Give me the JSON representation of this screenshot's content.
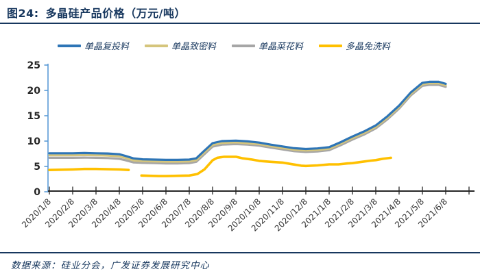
{
  "header": {
    "figure_label": "图24:",
    "title": "多晶硅产品价格（万元/吨）"
  },
  "footer": {
    "source": "数据来源：硅业分会，广发证券发展研究中心"
  },
  "style": {
    "navy": "#17375E",
    "y_axis_color": "#5B9BD5",
    "x_axis_color": "#262626",
    "tick_label_color": "#333333"
  },
  "chart_data": {
    "type": "line",
    "title": "多晶硅产品价格（万元/吨）",
    "ylabel": "",
    "xlabel": "",
    "ylim": [
      0,
      25
    ],
    "y_ticks": [
      0,
      5,
      10,
      15,
      20,
      25
    ],
    "grid": false,
    "legend_position": "top",
    "x_tick_labels": [
      "2020/1/8",
      "2020/2/8",
      "2020/3/8",
      "2020/4/8",
      "2020/5/8",
      "2020/6/8",
      "2020/7/8",
      "2020/8/8",
      "2020/9/8",
      "2020/10/8",
      "2020/11/8",
      "2020/12/8",
      "2021/1/8",
      "2021/2/8",
      "2021/3/8",
      "2021/4/8",
      "2021/5/8",
      "2021/6/8"
    ],
    "x_note": "x values below are month-index positions on the axis (0 = 2020/1/8, 17 = 2021/6/8); data is sub-monthly so fractional indices are used",
    "series": [
      {
        "id": "mono-recharge",
        "name": "单晶复投料",
        "color": "#2E75B6",
        "width": 3.2,
        "segments": [
          [
            [
              0,
              7.6
            ],
            [
              0.5,
              7.6
            ],
            [
              1,
              7.6
            ],
            [
              1.5,
              7.65
            ],
            [
              2,
              7.6
            ],
            [
              2.5,
              7.55
            ],
            [
              3,
              7.4
            ],
            [
              3.25,
              7.1
            ],
            [
              3.6,
              6.6
            ],
            [
              4,
              6.4
            ],
            [
              4.5,
              6.35
            ],
            [
              5,
              6.3
            ],
            [
              5.5,
              6.3
            ],
            [
              6,
              6.35
            ],
            [
              6.3,
              6.6
            ],
            [
              6.6,
              7.9
            ],
            [
              7,
              9.6
            ],
            [
              7.4,
              10.0
            ],
            [
              8,
              10.1
            ],
            [
              8.5,
              9.95
            ],
            [
              9,
              9.7
            ],
            [
              9.5,
              9.3
            ],
            [
              10,
              8.95
            ],
            [
              10.5,
              8.6
            ],
            [
              11,
              8.45
            ],
            [
              11.5,
              8.55
            ],
            [
              12,
              8.8
            ],
            [
              12.5,
              9.8
            ],
            [
              13,
              10.9
            ],
            [
              13.5,
              11.9
            ],
            [
              14,
              13.1
            ],
            [
              14.5,
              14.9
            ],
            [
              15,
              17.0
            ],
            [
              15.5,
              19.6
            ],
            [
              16,
              21.5
            ],
            [
              16.3,
              21.7
            ],
            [
              16.7,
              21.7
            ],
            [
              17,
              21.3
            ]
          ]
        ]
      },
      {
        "id": "mono-dense",
        "name": "单晶致密料",
        "color": "#D5C57C",
        "width": 3.2,
        "segments": [
          [
            [
              0,
              7.2
            ],
            [
              0.5,
              7.2
            ],
            [
              1,
              7.2
            ],
            [
              1.5,
              7.25
            ],
            [
              2,
              7.2
            ],
            [
              2.5,
              7.15
            ],
            [
              3,
              7.0
            ],
            [
              3.25,
              6.7
            ],
            [
              3.6,
              6.2
            ],
            [
              4,
              6.05
            ],
            [
              4.5,
              6.0
            ],
            [
              5,
              5.95
            ],
            [
              5.5,
              5.95
            ],
            [
              6,
              6.0
            ],
            [
              6.3,
              6.25
            ],
            [
              6.6,
              7.55
            ],
            [
              7,
              9.25
            ],
            [
              7.4,
              9.65
            ],
            [
              8,
              9.75
            ],
            [
              8.5,
              9.6
            ],
            [
              9,
              9.4
            ],
            [
              9.5,
              9.0
            ],
            [
              10,
              8.65
            ],
            [
              10.5,
              8.3
            ],
            [
              11,
              8.15
            ],
            [
              11.5,
              8.25
            ],
            [
              12,
              8.5
            ],
            [
              12.5,
              9.5
            ],
            [
              13,
              10.6
            ],
            [
              13.5,
              11.6
            ],
            [
              14,
              12.8
            ],
            [
              14.5,
              14.6
            ],
            [
              15,
              16.7
            ],
            [
              15.5,
              19.3
            ],
            [
              16,
              21.2
            ],
            [
              16.3,
              21.4
            ],
            [
              16.7,
              21.4
            ],
            [
              17,
              21.0
            ]
          ]
        ]
      },
      {
        "id": "mono-cauliflower",
        "name": "单晶菜花料",
        "color": "#A6A6A6",
        "width": 3.2,
        "segments": [
          [
            [
              0,
              6.7
            ],
            [
              0.5,
              6.7
            ],
            [
              1,
              6.7
            ],
            [
              1.5,
              6.75
            ],
            [
              2,
              6.7
            ],
            [
              2.5,
              6.65
            ],
            [
              3,
              6.5
            ],
            [
              3.25,
              6.25
            ],
            [
              3.6,
              5.8
            ],
            [
              4,
              5.7
            ],
            [
              4.5,
              5.65
            ],
            [
              5,
              5.6
            ],
            [
              5.5,
              5.6
            ],
            [
              6,
              5.65
            ],
            [
              6.3,
              5.9
            ],
            [
              6.6,
              7.2
            ],
            [
              7,
              8.9
            ],
            [
              7.4,
              9.3
            ],
            [
              8,
              9.4
            ],
            [
              8.5,
              9.3
            ],
            [
              9,
              9.1
            ],
            [
              9.5,
              8.7
            ],
            [
              10,
              8.35
            ],
            [
              10.5,
              8.0
            ],
            [
              11,
              7.85
            ],
            [
              11.5,
              7.95
            ],
            [
              12,
              8.2
            ],
            [
              12.5,
              9.2
            ],
            [
              13,
              10.3
            ],
            [
              13.5,
              11.3
            ],
            [
              14,
              12.5
            ],
            [
              14.5,
              14.3
            ],
            [
              15,
              16.4
            ],
            [
              15.5,
              19.0
            ],
            [
              16,
              20.9
            ],
            [
              16.3,
              21.1
            ],
            [
              16.7,
              21.1
            ],
            [
              17,
              20.7
            ]
          ]
        ]
      },
      {
        "id": "poly-no-wash",
        "name": "多晶免洗料",
        "color": "#FFC000",
        "width": 3.6,
        "segments": [
          [
            [
              0,
              4.3
            ],
            [
              0.5,
              4.35
            ],
            [
              1,
              4.4
            ],
            [
              1.5,
              4.5
            ],
            [
              2,
              4.5
            ],
            [
              2.5,
              4.45
            ],
            [
              3,
              4.4
            ],
            [
              3.4,
              4.3
            ]
          ],
          [
            [
              3.95,
              3.2
            ],
            [
              4.3,
              3.15
            ],
            [
              4.7,
              3.1
            ],
            [
              5,
              3.1
            ],
            [
              5.5,
              3.15
            ],
            [
              6,
              3.2
            ],
            [
              6.35,
              3.5
            ],
            [
              6.65,
              4.4
            ],
            [
              7,
              6.2
            ],
            [
              7.2,
              6.7
            ],
            [
              7.5,
              6.9
            ],
            [
              8,
              6.9
            ],
            [
              8.3,
              6.6
            ],
            [
              8.7,
              6.35
            ],
            [
              9,
              6.1
            ],
            [
              9.5,
              5.9
            ],
            [
              10,
              5.75
            ],
            [
              10.4,
              5.45
            ],
            [
              10.8,
              5.15
            ],
            [
              11,
              5.1
            ],
            [
              11.5,
              5.2
            ],
            [
              12,
              5.4
            ],
            [
              12.4,
              5.4
            ],
            [
              12.8,
              5.6
            ],
            [
              13,
              5.65
            ],
            [
              13.4,
              5.9
            ],
            [
              13.8,
              6.15
            ],
            [
              14,
              6.25
            ],
            [
              14.3,
              6.5
            ],
            [
              14.65,
              6.7
            ]
          ]
        ]
      }
    ]
  }
}
